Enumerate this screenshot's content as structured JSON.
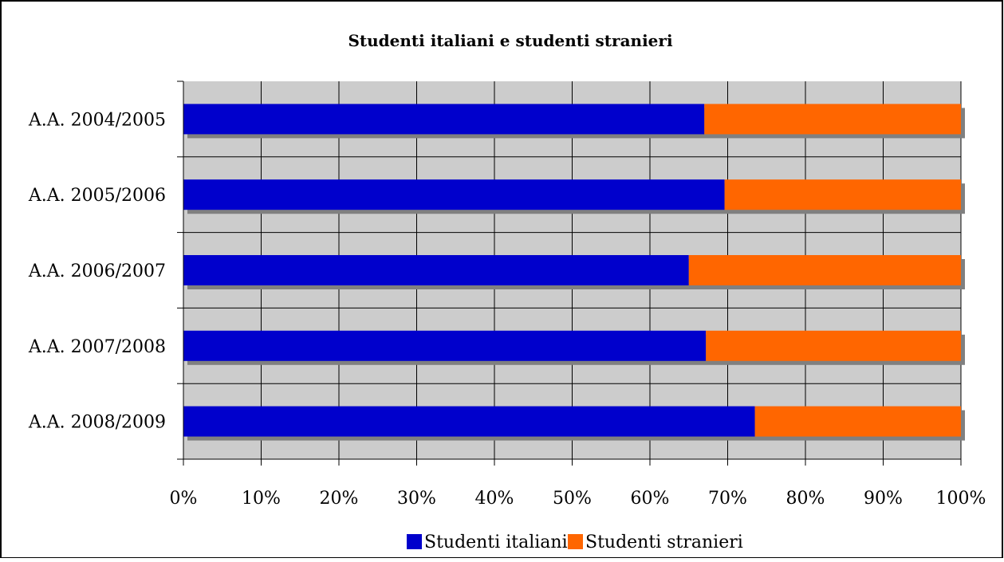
{
  "chart_data": {
    "type": "bar",
    "orientation": "horizontal",
    "stacked": "percent",
    "title": "Studenti italiani e studenti stranieri",
    "categories": [
      "A.A. 2004/2005",
      "A.A. 2005/2006",
      "A.A. 2006/2007",
      "A.A. 2007/2008",
      "A.A. 2008/2009"
    ],
    "series": [
      {
        "name": "Studenti italiani",
        "color": "#0000cc",
        "values": [
          67.0,
          69.6,
          65.0,
          67.2,
          73.5
        ]
      },
      {
        "name": "Studenti stranieri",
        "color": "#ff6600",
        "values": [
          33.0,
          30.4,
          35.0,
          32.8,
          26.5
        ]
      }
    ],
    "xlim": [
      0,
      100
    ],
    "x_ticks": [
      "0%",
      "10%",
      "20%",
      "30%",
      "40%",
      "50%",
      "60%",
      "70%",
      "80%",
      "90%",
      "100%"
    ],
    "grid": true,
    "legend": "bottom",
    "plot_background": "#cccccc"
  }
}
